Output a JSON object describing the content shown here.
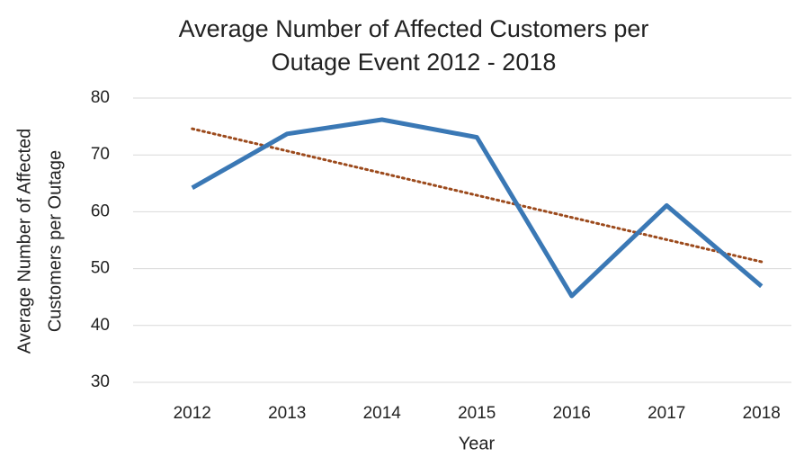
{
  "chart_data": {
    "type": "line",
    "title": [
      "Average Number of Affected Customers per",
      "Outage Event  2012 - 2018"
    ],
    "x_label": "Year",
    "y_label": [
      "Average Number of Affected",
      "Customers per Outage"
    ],
    "categories": [
      "2012",
      "2013",
      "2014",
      "2015",
      "2016",
      "2017",
      "2018"
    ],
    "series": [
      {
        "color": "#3a78b5",
        "style": "solid",
        "values": [
          64.2,
          73.7,
          76.2,
          73.1,
          45.2,
          61.1,
          46.9
        ]
      },
      {
        "color": "#9c4a1c",
        "style": "dotted",
        "values": [
          74.6,
          70.7,
          66.8,
          62.9,
          59.0,
          55.1,
          51.2
        ]
      }
    ],
    "ylim": [
      30,
      80
    ],
    "yticks": [
      30,
      40,
      50,
      60,
      70,
      80
    ],
    "grid": true
  }
}
